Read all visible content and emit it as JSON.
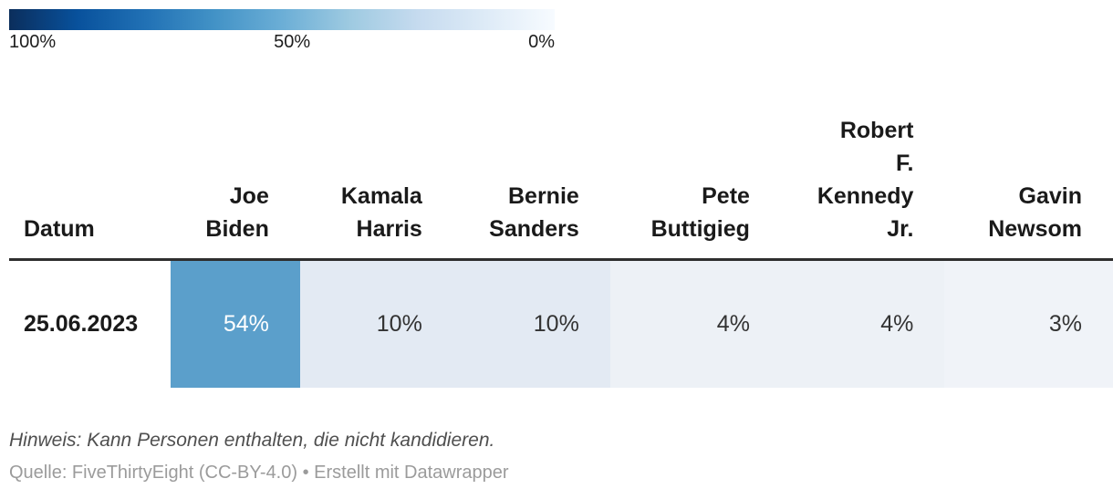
{
  "legend": {
    "labels": [
      "100%",
      "50%",
      "0%"
    ],
    "gradient_colors": [
      "#0b2e5c",
      "#08519c",
      "#2171b5",
      "#4292c6",
      "#6baed6",
      "#9ecae1",
      "#c6dbef",
      "#deebf7",
      "#f7fbff"
    ]
  },
  "table": {
    "columns": [
      {
        "id": "datum",
        "header_lines": [
          "Datum"
        ],
        "width": 192,
        "align": "left",
        "value": "25.06.2023",
        "bg": "#ffffff",
        "text_color": "#1a1a1a"
      },
      {
        "id": "joe-biden",
        "header_lines": [
          "Joe",
          "Biden"
        ],
        "width": 143,
        "align": "right",
        "value": "54%",
        "bg": "#5b9fcb",
        "text_color": "#ffffff"
      },
      {
        "id": "kamala-harris",
        "header_lines": [
          "Kamala",
          "Harris"
        ],
        "width": 174,
        "align": "right",
        "value": "10%",
        "bg": "#e3eaf3",
        "text_color": "#333333"
      },
      {
        "id": "bernie-sanders",
        "header_lines": [
          "Bernie",
          "Sanders"
        ],
        "width": 173,
        "align": "right",
        "value": "10%",
        "bg": "#e3eaf3",
        "text_color": "#333333"
      },
      {
        "id": "pete-buttigieg",
        "header_lines": [
          "Pete",
          "Buttigieg"
        ],
        "width": 193,
        "align": "right",
        "value": "4%",
        "bg": "#edf1f6",
        "text_color": "#333333"
      },
      {
        "id": "robert-f-kennedy-jr",
        "header_lines": [
          "Robert",
          "F.",
          "Kennedy",
          "Jr."
        ],
        "width": 181,
        "align": "right",
        "value": "4%",
        "bg": "#edf1f6",
        "text_color": "#333333"
      },
      {
        "id": "gavin-newsom",
        "header_lines": [
          "Gavin",
          "Newsom"
        ],
        "width": 193,
        "align": "right",
        "value": "3%",
        "bg": "#f0f3f8",
        "text_color": "#333333"
      }
    ]
  },
  "footer": {
    "note": "Hinweis: Kann Personen enthalten, die nicht kandidieren.",
    "source": "Quelle: FiveThirtyEight (CC-BY-4.0) • Erstellt mit Datawrapper"
  },
  "chart_data": {
    "type": "heatmap",
    "title": "",
    "categories": [
      "Joe Biden",
      "Kamala Harris",
      "Bernie Sanders",
      "Pete Buttigieg",
      "Robert F. Kennedy Jr.",
      "Gavin Newsom"
    ],
    "rows": [
      {
        "date": "25.06.2023",
        "values": [
          54,
          10,
          10,
          4,
          4,
          3
        ]
      }
    ],
    "unit": "%",
    "legend": {
      "max_label": "100%",
      "mid_label": "50%",
      "min_label": "0%",
      "scale": "blues-dark-to-light",
      "position": "top-left"
    },
    "note": "Hinweis: Kann Personen enthalten, die nicht kandidieren.",
    "source": "Quelle: FiveThirtyEight (CC-BY-4.0) • Erstellt mit Datawrapper"
  }
}
